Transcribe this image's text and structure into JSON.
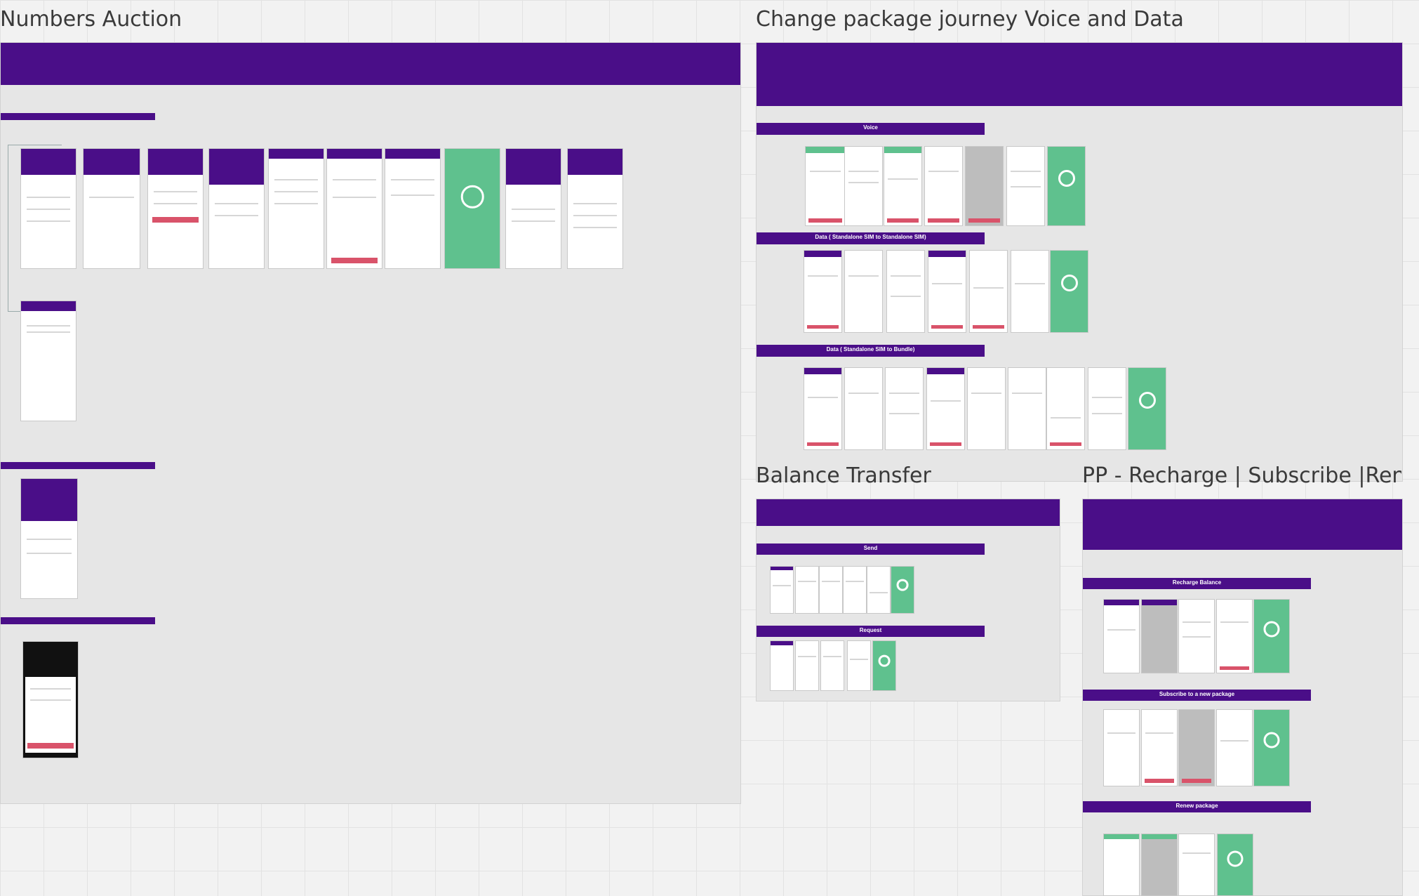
{
  "frames": {
    "numbers_auction": {
      "title": "Numbers Auction"
    },
    "change_package": {
      "title": "Change package journey Voice and Data",
      "sections": {
        "voice": "Voice",
        "data_standalone": "Data ( Standalone SIM to Standalone SIM)",
        "data_bundle": "Data ( Standalone SIM to Bundle)"
      }
    },
    "balance_transfer": {
      "title": "Balance Transfer",
      "sections": {
        "send": "Send",
        "request": "Request"
      }
    },
    "pp_recharge": {
      "title": "PP - Recharge | Subscribe |Rene...",
      "sections": {
        "recharge": "Recharge Balance",
        "subscribe": "Subscribe to a new package",
        "renew": "Renew package"
      }
    }
  },
  "colors": {
    "brand_purple": "#4a0e88",
    "success_green": "#5fc18e",
    "cta_red": "#d9536a"
  }
}
